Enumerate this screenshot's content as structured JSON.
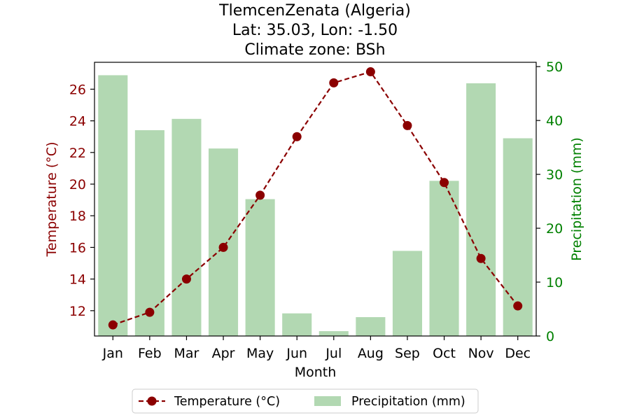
{
  "chart_data": {
    "type": "bar+line",
    "title": [
      "TlemcenZenata (Algeria)",
      "Lat: 35.03, Lon: -1.50",
      "Climate zone: BSh"
    ],
    "xlabel": "Month",
    "ylabel_left": "Temperature (°C)",
    "ylabel_right": "Precipitation (mm)",
    "categories": [
      "Jan",
      "Feb",
      "Mar",
      "Apr",
      "May",
      "Jun",
      "Jul",
      "Aug",
      "Sep",
      "Oct",
      "Nov",
      "Dec"
    ],
    "y_left_ticks": [
      12,
      14,
      16,
      18,
      20,
      22,
      24,
      26
    ],
    "y_left_range": [
      10.4,
      27.7
    ],
    "y_right_ticks": [
      0,
      10,
      20,
      30,
      40,
      50
    ],
    "y_right_range": [
      0,
      50.8
    ],
    "grid": false,
    "legend_position": "bottom-center",
    "series": [
      {
        "name": "Temperature (°C)",
        "kind": "line",
        "axis": "left",
        "color": "#8b0000",
        "line_style": "dashed",
        "marker": "circle",
        "values": [
          11.1,
          11.9,
          14.0,
          16.0,
          19.3,
          23.0,
          26.4,
          27.1,
          23.7,
          20.1,
          15.3,
          12.3
        ]
      },
      {
        "name": "Precipitation (mm)",
        "kind": "bar",
        "axis": "right",
        "color": "#b2d8b2",
        "values": [
          48.4,
          38.2,
          40.3,
          34.8,
          25.4,
          4.2,
          0.9,
          3.5,
          15.8,
          28.8,
          46.9,
          36.7
        ]
      }
    ],
    "colors": {
      "left_axis": "#8b0000",
      "right_axis": "#008000",
      "text": "#000000"
    }
  }
}
